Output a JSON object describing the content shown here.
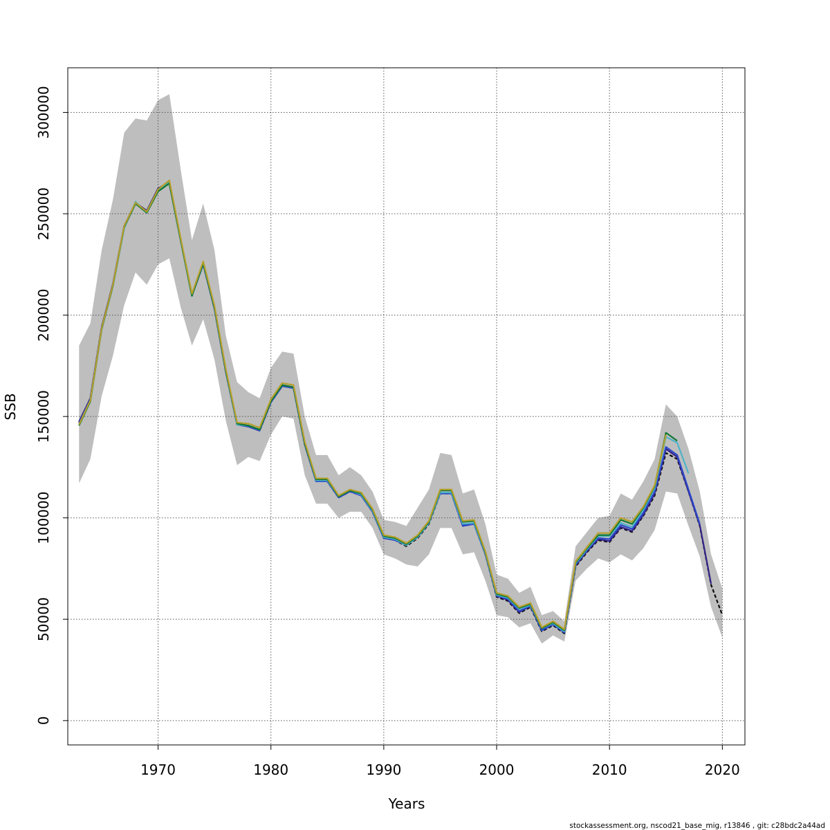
{
  "chart_data": {
    "type": "line",
    "title": "",
    "xlabel": "Years",
    "ylabel": "SSB",
    "xlim": [
      1962,
      2022
    ],
    "ylim": [
      -12000,
      322000
    ],
    "x_ticks": [
      1970,
      1980,
      1990,
      2000,
      2010,
      2020
    ],
    "y_ticks": [
      0,
      50000,
      100000,
      150000,
      200000,
      250000,
      300000
    ],
    "x_tick_labels": [
      "1970",
      "1980",
      "1990",
      "2000",
      "2010",
      "2020"
    ],
    "y_tick_labels": [
      "0",
      "50000",
      "100000",
      "150000",
      "200000",
      "250000",
      "300000"
    ],
    "grid": true,
    "confidence_band": {
      "color": "#bebebe",
      "x": [
        1963,
        1964,
        1965,
        1966,
        1967,
        1968,
        1969,
        1970,
        1971,
        1972,
        1973,
        1974,
        1975,
        1976,
        1977,
        1978,
        1979,
        1980,
        1981,
        1982,
        1983,
        1984,
        1985,
        1986,
        1987,
        1988,
        1989,
        1990,
        1991,
        1992,
        1993,
        1994,
        1995,
        1996,
        1997,
        1998,
        1999,
        2000,
        2001,
        2002,
        2003,
        2004,
        2005,
        2006,
        2007,
        2008,
        2009,
        2010,
        2011,
        2012,
        2013,
        2014,
        2015,
        2016,
        2017,
        2018,
        2019,
        2020
      ],
      "upper": [
        185000,
        196000,
        232000,
        257000,
        290000,
        297000,
        296000,
        306000,
        309000,
        272000,
        237000,
        255000,
        232000,
        190000,
        167000,
        162000,
        159000,
        174000,
        182000,
        181000,
        150000,
        131000,
        131000,
        121000,
        125000,
        121000,
        113000,
        99000,
        98000,
        96000,
        105000,
        114000,
        132000,
        131000,
        112000,
        114000,
        97000,
        72000,
        70000,
        63000,
        66000,
        52000,
        54000,
        49000,
        86000,
        93000,
        100000,
        101000,
        112000,
        109000,
        118000,
        129000,
        156000,
        150000,
        134000,
        113000,
        82000,
        65000
      ],
      "lower": [
        117000,
        129000,
        160000,
        180000,
        205000,
        221000,
        215000,
        225000,
        228000,
        204000,
        185000,
        198000,
        178000,
        148000,
        126000,
        130000,
        128000,
        141000,
        150000,
        149000,
        121000,
        107000,
        107000,
        100000,
        103000,
        103000,
        95000,
        82000,
        80000,
        77000,
        76000,
        82000,
        95000,
        95000,
        82000,
        83000,
        69000,
        52000,
        51000,
        46000,
        48000,
        38000,
        42000,
        39000,
        69000,
        75000,
        80000,
        78000,
        82000,
        79000,
        85000,
        94000,
        113000,
        112000,
        96000,
        81000,
        56000,
        41000
      ]
    },
    "series": [
      {
        "color": "#0c0c0c",
        "dashed": true,
        "x": [
          1963,
          1964,
          1965,
          1966,
          1967,
          1968,
          1969,
          1970,
          1971,
          1972,
          1973,
          1974,
          1975,
          1976,
          1977,
          1978,
          1979,
          1980,
          1981,
          1982,
          1983,
          1984,
          1985,
          1986,
          1987,
          1988,
          1989,
          1990,
          1991,
          1992,
          1993,
          1994,
          1995,
          1996,
          1997,
          1998,
          1999,
          2000,
          2001,
          2002,
          2003,
          2004,
          2005,
          2006,
          2007,
          2008,
          2009,
          2010,
          2011,
          2012,
          2013,
          2014,
          2015,
          2016,
          2017,
          2018,
          2019,
          2020
        ],
        "values": [
          147000,
          159000,
          194000,
          215000,
          244000,
          255000,
          251000,
          262000,
          265000,
          237000,
          210000,
          225000,
          203000,
          172000,
          146000,
          145000,
          143000,
          157000,
          165000,
          164000,
          136000,
          118000,
          118000,
          110000,
          113000,
          111000,
          103000,
          90000,
          89000,
          86000,
          90000,
          97000,
          112000,
          112000,
          96000,
          97000,
          82000,
          61000,
          59000,
          53000,
          56000,
          44000,
          47000,
          43000,
          76000,
          83000,
          89000,
          88000,
          95000,
          93000,
          101000,
          111000,
          132000,
          129000,
          113000,
          96000,
          67000,
          52000
        ]
      },
      {
        "color": "#332288",
        "dashed": false,
        "x": [
          1963,
          1964,
          1965,
          1966,
          1967,
          1968,
          1969,
          1970,
          1971,
          1972,
          1973,
          1974,
          1975,
          1976,
          1977,
          1978,
          1979,
          1980,
          1981,
          1982,
          1983,
          1984,
          1985,
          1986,
          1987,
          1988,
          1989,
          1990,
          1991,
          1992,
          1993,
          1994,
          1995,
          1996,
          1997,
          1998,
          1999,
          2000,
          2001,
          2002,
          2003,
          2004,
          2005,
          2006,
          2007,
          2008,
          2009,
          2010,
          2011,
          2012,
          2013,
          2014,
          2015,
          2016,
          2017,
          2018,
          2019
        ],
        "values": [
          147500,
          159000,
          194000,
          215500,
          244000,
          255500,
          251500,
          262500,
          265500,
          237500,
          210000,
          225500,
          203500,
          172500,
          146500,
          145500,
          143500,
          157500,
          165500,
          164500,
          136500,
          118500,
          118500,
          110500,
          113500,
          111500,
          103500,
          90500,
          89500,
          86500,
          90500,
          97500,
          112500,
          112500,
          96500,
          97500,
          82500,
          61500,
          59500,
          53500,
          56500,
          44500,
          47500,
          43500,
          76500,
          83500,
          89500,
          88500,
          95500,
          93500,
          101500,
          112000,
          134000,
          130000,
          113000,
          96500,
          67500
        ]
      },
      {
        "color": "#2b47c9",
        "dashed": false,
        "x": [
          1963,
          1964,
          1965,
          1966,
          1967,
          1968,
          1969,
          1970,
          1971,
          1972,
          1973,
          1974,
          1975,
          1976,
          1977,
          1978,
          1979,
          1980,
          1981,
          1982,
          1983,
          1984,
          1985,
          1986,
          1987,
          1988,
          1989,
          1990,
          1991,
          1992,
          1993,
          1994,
          1995,
          1996,
          1997,
          1998,
          1999,
          2000,
          2001,
          2002,
          2003,
          2004,
          2005,
          2006,
          2007,
          2008,
          2009,
          2010,
          2011,
          2012,
          2013,
          2014,
          2015,
          2016,
          2017,
          2018
        ],
        "values": [
          146500,
          158500,
          193500,
          215000,
          243500,
          255000,
          251000,
          262000,
          265000,
          237000,
          209500,
          225000,
          203000,
          172000,
          146000,
          145000,
          143000,
          157000,
          165000,
          164000,
          136000,
          118000,
          118000,
          110000,
          113000,
          111000,
          103000,
          90000,
          89000,
          86500,
          90500,
          97500,
          112000,
          112000,
          96000,
          97000,
          82000,
          61500,
          60000,
          54000,
          56500,
          44500,
          47500,
          43500,
          77000,
          84000,
          90000,
          89500,
          96500,
          94500,
          102500,
          113000,
          135000,
          131000,
          114000,
          97000
        ]
      },
      {
        "color": "#4fb3c8",
        "dashed": false,
        "x": [
          1963,
          1964,
          1965,
          1966,
          1967,
          1968,
          1969,
          1970,
          1971,
          1972,
          1973,
          1974,
          1975,
          1976,
          1977,
          1978,
          1979,
          1980,
          1981,
          1982,
          1983,
          1984,
          1985,
          1986,
          1987,
          1988,
          1989,
          1990,
          1991,
          1992,
          1993,
          1994,
          1995,
          1996,
          1997,
          1998,
          1999,
          2000,
          2001,
          2002,
          2003,
          2004,
          2005,
          2006,
          2007,
          2008,
          2009,
          2010,
          2011,
          2012,
          2013,
          2014,
          2015,
          2016,
          2017
        ],
        "values": [
          146000,
          158000,
          193000,
          214500,
          243000,
          256000,
          250500,
          261500,
          265500,
          237000,
          209500,
          225500,
          203500,
          172500,
          146000,
          145500,
          143500,
          157500,
          165500,
          164500,
          136500,
          118500,
          118500,
          110500,
          113500,
          111500,
          103500,
          90500,
          89500,
          86500,
          90500,
          97500,
          112500,
          112500,
          97000,
          97500,
          82500,
          62000,
          60500,
          55000,
          57000,
          45500,
          48000,
          44000,
          77500,
          84500,
          91000,
          91000,
          97500,
          95500,
          104000,
          114500,
          140000,
          137000,
          122000
        ]
      },
      {
        "color": "#117733",
        "dashed": false,
        "x": [
          1963,
          1964,
          1965,
          1966,
          1967,
          1968,
          1969,
          1970,
          1971,
          1972,
          1973,
          1974,
          1975,
          1976,
          1977,
          1978,
          1979,
          1980,
          1981,
          1982,
          1983,
          1984,
          1985,
          1986,
          1987,
          1988,
          1989,
          1990,
          1991,
          1992,
          1993,
          1994,
          1995,
          1996,
          1997,
          1998,
          1999,
          2000,
          2001,
          2002,
          2003,
          2004,
          2005,
          2006,
          2007,
          2008,
          2009,
          2010,
          2011,
          2012,
          2013,
          2014,
          2015,
          2016
        ],
        "values": [
          145500,
          157500,
          193000,
          214500,
          243500,
          255000,
          250500,
          261000,
          265000,
          237000,
          209500,
          225500,
          203500,
          172500,
          146500,
          145500,
          143500,
          157500,
          165500,
          164500,
          136500,
          119000,
          119000,
          110500,
          113500,
          112000,
          104000,
          91000,
          90000,
          87000,
          91000,
          98000,
          113500,
          113500,
          98000,
          98500,
          83000,
          62500,
          61000,
          55500,
          57500,
          45500,
          48500,
          44500,
          78000,
          85000,
          91500,
          91500,
          99000,
          97000,
          105000,
          115500,
          142000,
          138000
        ]
      },
      {
        "color": "#b5a02c",
        "dashed": false,
        "x": [
          1963,
          1964,
          1965,
          1966,
          1967,
          1968,
          1969,
          1970,
          1971,
          1972,
          1973,
          1974,
          1975,
          1976,
          1977,
          1978,
          1979,
          1980,
          1981,
          1982,
          1983,
          1984,
          1985,
          1986,
          1987,
          1988,
          1989,
          1990,
          1991,
          1992,
          1993,
          1994,
          1995,
          1996,
          1997,
          1998,
          1999,
          2000,
          2001,
          2002,
          2003,
          2004,
          2005,
          2006,
          2007,
          2008,
          2009,
          2010,
          2011,
          2012,
          2013,
          2014,
          2015
        ],
        "values": [
          146000,
          158000,
          193500,
          215000,
          244000,
          255500,
          251000,
          262000,
          266500,
          238000,
          210500,
          226500,
          204500,
          173500,
          147000,
          146500,
          144500,
          158500,
          166500,
          165500,
          137500,
          119500,
          119500,
          111000,
          114000,
          112500,
          104500,
          91500,
          90500,
          87500,
          91500,
          98500,
          114000,
          114000,
          98500,
          99000,
          83500,
          63000,
          61500,
          56000,
          58000,
          46000,
          49000,
          45000,
          78500,
          85500,
          92500,
          92500,
          100000,
          98000,
          105500,
          116000,
          141000
        ]
      }
    ]
  },
  "footer": {
    "note": "stockassessment.org, nscod21_base_mig, r13846 , git: c28bdc2a44ad"
  }
}
